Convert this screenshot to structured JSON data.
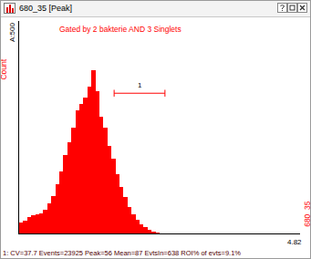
{
  "window_title": "680_35 [Peak]",
  "chart_data": {
    "type": "histogram",
    "title": "Gated by 2 bakterie AND 3 Singlets",
    "y_label": "Count",
    "x_label": "680_35",
    "bins": [
      0,
      3,
      6,
      9,
      12,
      15,
      18,
      21,
      24,
      27,
      30,
      33,
      36,
      39,
      42,
      45,
      48,
      51,
      54,
      57,
      60,
      63,
      66,
      69,
      72,
      75,
      78,
      81,
      84,
      87,
      90,
      93,
      96,
      99,
      102,
      105,
      108,
      111,
      114,
      117,
      120,
      123,
      126,
      129,
      132,
      135,
      138,
      141,
      144,
      147,
      150,
      153,
      156,
      159,
      162,
      165,
      168,
      171,
      174,
      177,
      180,
      183,
      186,
      189,
      192,
      195,
      198,
      201,
      204,
      207,
      210
    ],
    "values": [
      25,
      30,
      38,
      42,
      45,
      48,
      55,
      70,
      88,
      115,
      145,
      185,
      215,
      250,
      290,
      305,
      320,
      345,
      385,
      335,
      275,
      250,
      205,
      175,
      140,
      110,
      85,
      62,
      45,
      32,
      22,
      14,
      9,
      5,
      3,
      1,
      0,
      0,
      0,
      0,
      0,
      0,
      0,
      0,
      0,
      0,
      0,
      0,
      0,
      0,
      0,
      0,
      0,
      0,
      0,
      0,
      0,
      0,
      0,
      0,
      0,
      0,
      0,
      0,
      0,
      0,
      0,
      0,
      0,
      0
    ],
    "color": "#ff0000",
    "xlim": [
      0,
      210
    ],
    "ylim": [
      0,
      500
    ],
    "yticks": [
      {
        "value": 500,
        "label": "A:500"
      }
    ],
    "tick_labels": "y",
    "grid": false,
    "regions": [
      {
        "label": "1",
        "x": [
          71,
          109
        ],
        "y": 330
      }
    ],
    "annotations": [
      "4.82"
    ]
  },
  "status_bar": "1: CV=37.7 Events=23925 Peak=56 Mean=87 EvtsIn=638 ROI% of evts=9.1%"
}
